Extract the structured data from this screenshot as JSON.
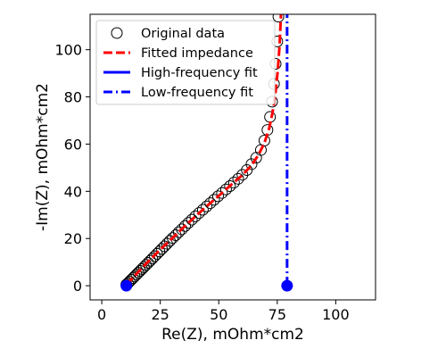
{
  "chart_data": {
    "type": "scatter",
    "xlabel": "Re(Z), mOhm*cm2",
    "ylabel": "-Im(Z), mOhm*cm2",
    "xlim": [
      -5,
      117
    ],
    "ylim": [
      -6,
      115
    ],
    "xticks": [
      0,
      25,
      50,
      75,
      100
    ],
    "yticks": [
      0,
      20,
      40,
      60,
      80,
      100
    ],
    "grid": false,
    "legend_position": "top-left",
    "legend": [
      "Original data",
      "Fitted impedance",
      "High-frequency fit",
      "Low-frequency fit"
    ],
    "series": [
      {
        "name": "Original data",
        "style": "open-circle",
        "color": "#000000",
        "x": [
          10.5,
          11.2,
          11.9,
          12.6,
          13.3,
          14.0,
          14.8,
          15.6,
          16.4,
          17.2,
          18.0,
          18.9,
          19.8,
          20.7,
          21.6,
          22.6,
          23.6,
          24.6,
          25.7,
          26.8,
          27.9,
          29.1,
          30.3,
          31.6,
          32.9,
          34.2,
          35.6,
          37.0,
          38.5,
          40.0,
          41.6,
          43.2,
          44.8,
          46.4,
          48.0,
          49.7,
          51.4,
          53.1,
          54.8,
          56.5,
          58.3,
          60.1,
          62.0,
          64.0,
          66.0,
          68.0,
          69.5,
          70.8,
          71.9,
          72.8,
          73.6,
          74.3,
          75.0,
          75.5
        ],
        "y": [
          0.5,
          1.1,
          1.8,
          2.5,
          3.2,
          3.9,
          4.7,
          5.5,
          6.3,
          7.1,
          7.9,
          8.8,
          9.7,
          10.6,
          11.5,
          12.5,
          13.5,
          14.5,
          15.6,
          16.7,
          17.8,
          19.0,
          20.2,
          21.4,
          22.7,
          23.9,
          25.3,
          26.6,
          28.0,
          29.4,
          30.8,
          32.2,
          33.6,
          35.0,
          36.4,
          37.9,
          39.3,
          40.8,
          42.2,
          43.7,
          45.3,
          47.0,
          49.0,
          51.5,
          54.2,
          57.5,
          61.5,
          66.0,
          71.5,
          78.0,
          85.5,
          94.0,
          103.5,
          114.0
        ]
      },
      {
        "name": "Fitted impedance",
        "style": "dashed-line",
        "color": "#ff0000",
        "x": [
          10.5,
          15.0,
          20.0,
          25.0,
          30.0,
          35.0,
          40.0,
          45.0,
          50.0,
          55.0,
          60.0,
          64.0,
          67.0,
          69.5,
          71.5,
          73.0,
          74.2,
          75.2,
          76.0,
          76.6
        ],
        "y": [
          0.5,
          5.2,
          10.4,
          15.3,
          20.0,
          24.8,
          29.4,
          33.8,
          38.1,
          42.5,
          46.8,
          51.0,
          55.5,
          60.5,
          66.5,
          73.5,
          81.5,
          91.0,
          102.0,
          115.0
        ]
      },
      {
        "name": "High-frequency fit",
        "style": "solid-line-endpoint",
        "color": "#0000ff",
        "x": [
          10.5,
          10.5
        ],
        "y": [
          0,
          0
        ]
      },
      {
        "name": "Low-frequency fit",
        "style": "dashdot-line-endpoint",
        "color": "#0000ff",
        "x": [
          79.2,
          79.2
        ],
        "y": [
          0,
          115
        ]
      }
    ]
  }
}
